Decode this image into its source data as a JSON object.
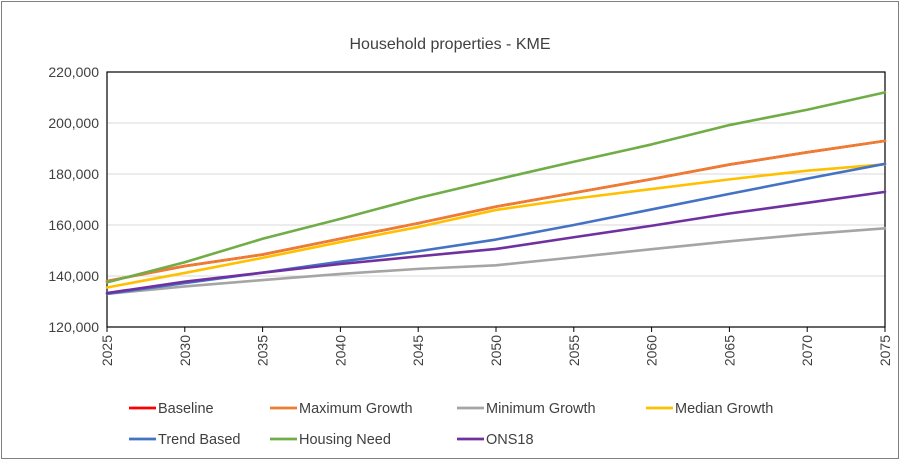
{
  "chart_data": {
    "type": "line",
    "title": "Household properties - KME",
    "xlabel": "",
    "ylabel": "",
    "ylim": [
      120000,
      220000
    ],
    "xlim": [
      2025,
      2075
    ],
    "y_ticks": [
      "120,000",
      "140,000",
      "160,000",
      "180,000",
      "200,000",
      "220,000"
    ],
    "x_ticks": [
      "2025",
      "2030",
      "2035",
      "2040",
      "2045",
      "2050",
      "2055",
      "2060",
      "2065",
      "2070",
      "2075"
    ],
    "grid": "horizontal",
    "legend_position": "bottom",
    "x": [
      2025,
      2030,
      2035,
      2040,
      2045,
      2050,
      2055,
      2060,
      2065,
      2070,
      2075
    ],
    "series": [
      {
        "name": "Baseline",
        "color": "#ff0000",
        "values": [
          138000,
          143900,
          148400,
          154600,
          160700,
          167200,
          172600,
          178000,
          183700,
          188500,
          193000
        ]
      },
      {
        "name": "Maximum Growth",
        "color": "#ed7d31",
        "values": [
          138000,
          143900,
          148400,
          154600,
          160700,
          167200,
          172600,
          178000,
          183700,
          188500,
          193000
        ]
      },
      {
        "name": "Minimum Growth",
        "color": "#a5a5a5",
        "values": [
          133000,
          135900,
          138400,
          140800,
          142800,
          144200,
          147300,
          150500,
          153600,
          156400,
          158700
        ]
      },
      {
        "name": "Median Growth",
        "color": "#ffc000",
        "values": [
          135500,
          141200,
          147100,
          153300,
          159200,
          165900,
          170300,
          174100,
          177900,
          181300,
          183800
        ]
      },
      {
        "name": "Trend Based",
        "color": "#4472c4",
        "values": [
          133000,
          137200,
          141300,
          145600,
          149700,
          154300,
          160000,
          166100,
          172200,
          178200,
          184000
        ]
      },
      {
        "name": "Housing Need",
        "color": "#70ad47",
        "values": [
          137500,
          145400,
          154600,
          162400,
          170600,
          177800,
          184800,
          191600,
          199200,
          205200,
          212000
        ]
      },
      {
        "name": "ONS18",
        "color": "#7030a0",
        "values": [
          133300,
          137800,
          141300,
          144700,
          147700,
          150600,
          155200,
          159700,
          164500,
          168700,
          173000
        ]
      }
    ]
  }
}
